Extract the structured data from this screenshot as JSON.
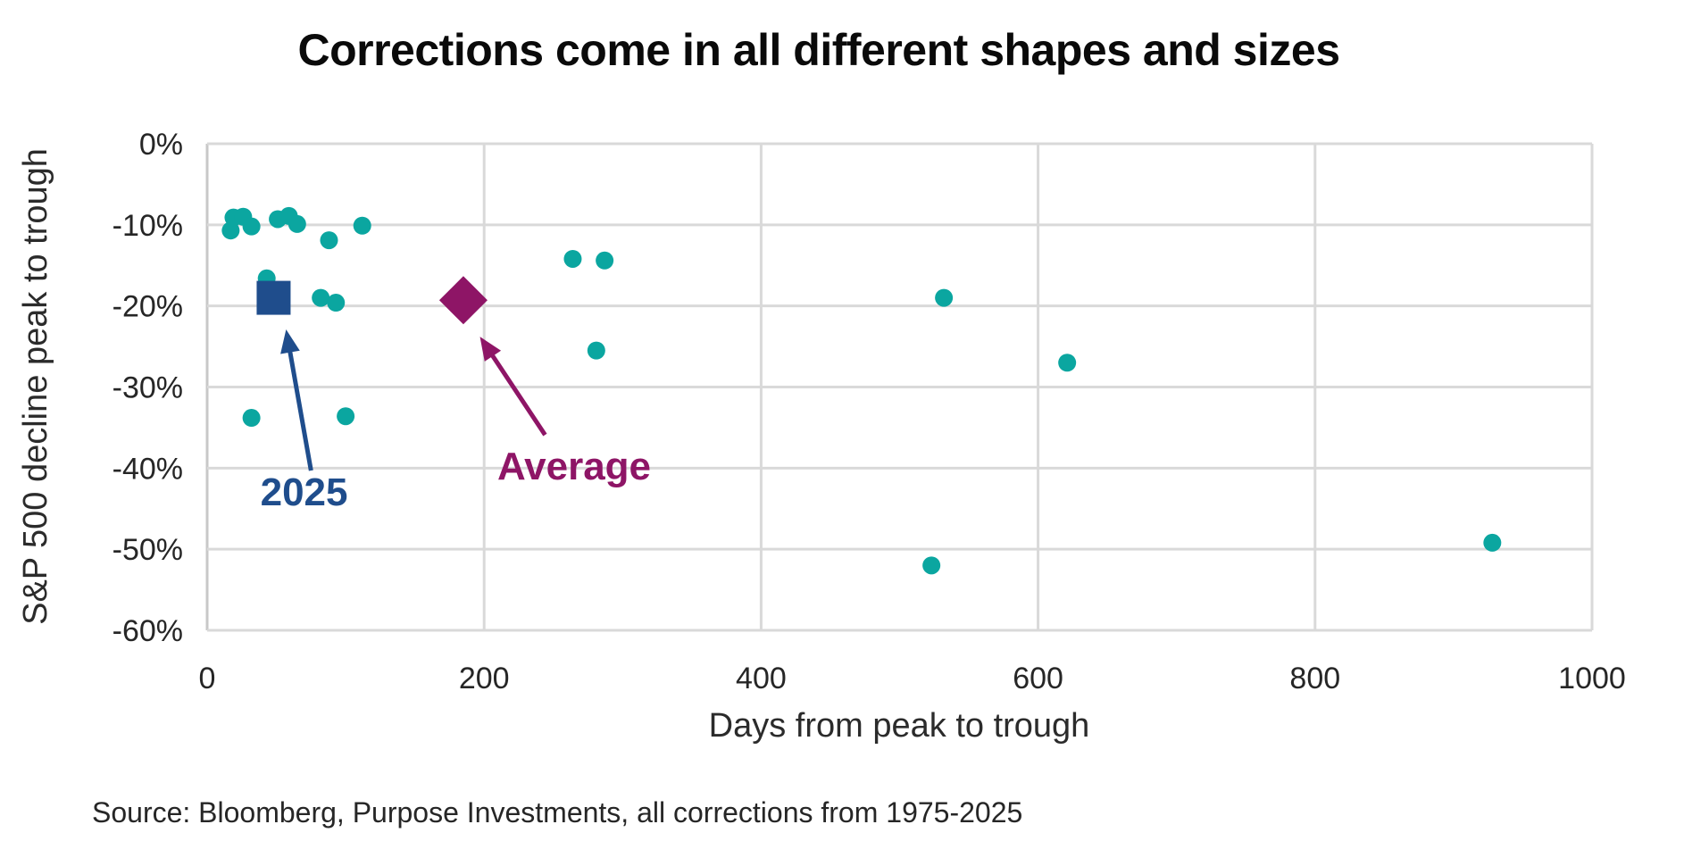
{
  "page": {
    "background": "#FFFFFF",
    "grid_color": "#D9D9D9",
    "axis_line_color": "#C8C8C8",
    "text_color": "#262626"
  },
  "chart_data": {
    "type": "scatter",
    "title": "Corrections come in all different shapes and sizes",
    "xlabel": "Days from peak to trough",
    "ylabel": "S&P 500 decline peak to trough",
    "source": "Source: Bloomberg, Purpose Investments, all corrections from 1975-2025",
    "xlim": [
      0,
      1000
    ],
    "ylim": [
      -60,
      0
    ],
    "x_ticks": [
      0,
      200,
      400,
      600,
      800,
      1000
    ],
    "x_tick_labels": [
      "0",
      "200",
      "400",
      "600",
      "800",
      "1000"
    ],
    "y_ticks": [
      0,
      -10,
      -20,
      -30,
      -40,
      -50,
      -60
    ],
    "y_tick_labels": [
      "0%",
      "-10%",
      "-20%",
      "-30%",
      "-40%",
      "-50%",
      "-60%"
    ],
    "grid": true,
    "legend_position": "none",
    "series": [
      {
        "name": "corrections",
        "marker": "circle",
        "color": "#0BA6A0",
        "points": [
          [
            17,
            -10.7
          ],
          [
            19,
            -9.1
          ],
          [
            26,
            -9.0
          ],
          [
            32,
            -10.2
          ],
          [
            51,
            -9.3
          ],
          [
            59,
            -8.9
          ],
          [
            65,
            -9.9
          ],
          [
            88,
            -11.9
          ],
          [
            112,
            -10.1
          ],
          [
            43,
            -16.6
          ],
          [
            82,
            -19.0
          ],
          [
            93,
            -19.6
          ],
          [
            32,
            -33.8
          ],
          [
            100,
            -33.6
          ],
          [
            264,
            -14.2
          ],
          [
            287,
            -14.4
          ],
          [
            281,
            -25.5
          ],
          [
            532,
            -19.0
          ],
          [
            621,
            -27.0
          ],
          [
            523,
            -52.0
          ],
          [
            928,
            -49.2
          ]
        ]
      },
      {
        "name": "2025",
        "marker": "square",
        "color": "#1F4D8C",
        "points": [
          [
            48,
            -19.0
          ]
        ]
      },
      {
        "name": "average",
        "marker": "diamond",
        "color": "#8E1566",
        "points": [
          [
            185,
            -19.3
          ]
        ]
      }
    ],
    "annotations": [
      {
        "label": "2025",
        "color": "#1F4D8C",
        "text_at": [
          70,
          -44.6
        ],
        "arrow_from": [
          75,
          -40.3
        ],
        "arrow_to": [
          57,
          -22.9
        ]
      },
      {
        "label": "Average",
        "color": "#8E1566",
        "text_at": [
          265,
          -41.4
        ],
        "arrow_from": [
          244,
          -35.9
        ],
        "arrow_to": [
          197,
          -23.8
        ]
      }
    ]
  }
}
